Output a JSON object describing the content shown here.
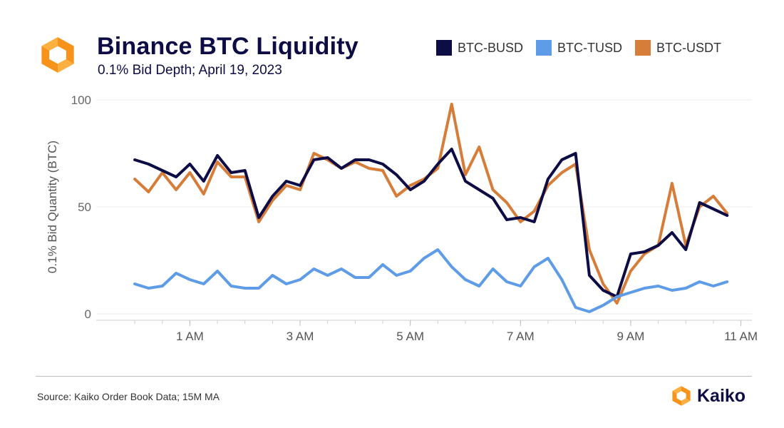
{
  "header": {
    "title": "Binance BTC Liquidity",
    "subtitle": "0.1% Bid Depth; April 19, 2023"
  },
  "footer": {
    "source": "Source: Kaiko Order Book Data; 15M MA",
    "brand": "Kaiko"
  },
  "colors": {
    "brand_orange": "#f7931a",
    "brand_orange_light": "#fbb040",
    "navy": "#0e0c45"
  },
  "chart_data": {
    "type": "line",
    "title": "Binance BTC Liquidity",
    "subtitle": "0.1% Bid Depth; April 19, 2023",
    "xlabel": "",
    "ylabel": "0.1% Bid Quantity (BTC)",
    "x_unit": "hours after midnight",
    "xlim": [
      -0.7,
      11.2
    ],
    "ylim": [
      0,
      100
    ],
    "yticks": [
      0,
      50,
      100
    ],
    "xticks": [
      {
        "value": 1,
        "label": "1 AM"
      },
      {
        "value": 3,
        "label": "3 AM"
      },
      {
        "value": 5,
        "label": "5 AM"
      },
      {
        "value": 7,
        "label": "7 AM"
      },
      {
        "value": 9,
        "label": "9 AM"
      },
      {
        "value": 11,
        "label": "11 AM"
      }
    ],
    "grid": true,
    "legend_position": "top-right",
    "x": [
      0,
      0.25,
      0.5,
      0.75,
      1,
      1.25,
      1.5,
      1.75,
      2,
      2.25,
      2.5,
      2.75,
      3,
      3.25,
      3.5,
      3.75,
      4,
      4.25,
      4.5,
      4.75,
      5,
      5.25,
      5.5,
      5.75,
      6,
      6.25,
      6.5,
      6.75,
      7,
      7.25,
      7.5,
      7.75,
      8,
      8.25,
      8.5,
      8.75,
      9,
      9.25,
      9.5,
      9.75,
      10,
      10.25,
      10.5,
      10.75
    ],
    "series": [
      {
        "name": "BTC-BUSD",
        "color": "#0e0c45",
        "values": [
          72,
          70,
          67,
          64,
          70,
          62,
          74,
          66,
          67,
          45,
          55,
          62,
          60,
          72,
          73,
          68,
          72,
          72,
          70,
          65,
          58,
          62,
          70,
          77,
          62,
          58,
          54,
          44,
          45,
          43,
          63,
          72,
          75,
          18,
          11,
          8,
          28,
          29,
          32,
          38,
          30,
          52,
          49,
          46
        ]
      },
      {
        "name": "BTC-TUSD",
        "color": "#5e9ce8",
        "values": [
          14,
          12,
          13,
          19,
          16,
          14,
          20,
          13,
          12,
          12,
          18,
          14,
          16,
          21,
          18,
          21,
          17,
          17,
          23,
          18,
          20,
          26,
          30,
          22,
          16,
          13,
          21,
          15,
          13,
          22,
          26,
          16,
          3,
          1,
          4,
          8,
          10,
          12,
          13,
          11,
          12,
          15,
          13,
          15
        ]
      },
      {
        "name": "BTC-USDT",
        "color": "#d67d3a",
        "values": [
          63,
          57,
          66,
          58,
          66,
          56,
          71,
          64,
          64,
          43,
          53,
          60,
          58,
          75,
          72,
          68,
          71,
          68,
          67,
          55,
          60,
          63,
          68,
          98,
          65,
          78,
          58,
          52,
          43,
          48,
          60,
          66,
          70,
          30,
          14,
          5,
          20,
          28,
          32,
          61,
          32,
          50,
          55,
          47
        ]
      }
    ]
  }
}
